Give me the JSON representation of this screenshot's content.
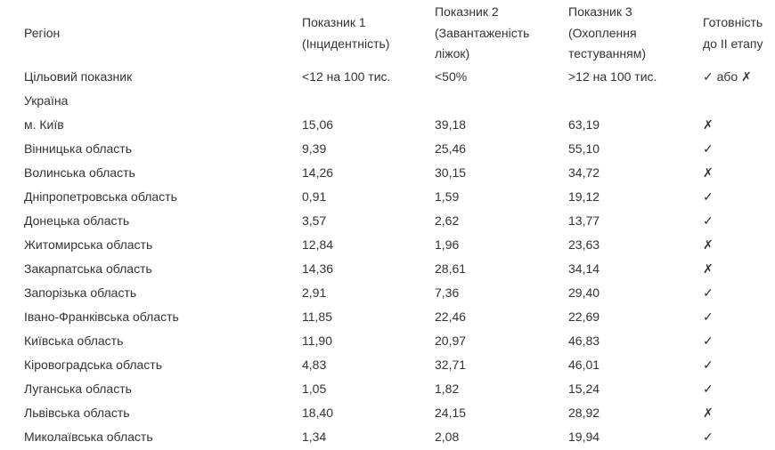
{
  "headers": {
    "region": "Регіон",
    "ind1": [
      "Показник 1",
      "(Інцидентність)"
    ],
    "ind2": [
      "Показник 2",
      "(Завантаженість",
      "ліжок)"
    ],
    "ind3": [
      "Показник 3",
      "(Охоплення",
      "тестуванням)"
    ],
    "ready": [
      "Готовність",
      "до II етапу"
    ]
  },
  "target": {
    "label": "Цільовий показник",
    "ind1": "<12 на 100 тис.",
    "ind2": "<50%",
    "ind3": ">12 на 100 тис.",
    "ready": "✓ або ✗"
  },
  "country": "Україна",
  "rows": [
    {
      "region": "м. Київ",
      "ind1": "15,06",
      "ind2": "39,18",
      "ind3": "63,19",
      "ready": "✗"
    },
    {
      "region": "Вінницька область",
      "ind1": "9,39",
      "ind2": "25,46",
      "ind3": "55,10",
      "ready": "✓"
    },
    {
      "region": "Волинська область",
      "ind1": "14,26",
      "ind2": "30,15",
      "ind3": "34,72",
      "ready": "✗"
    },
    {
      "region": "Дніпропетровська область",
      "ind1": "0,91",
      "ind2": "1,59",
      "ind3": "19,12",
      "ready": "✓"
    },
    {
      "region": "Донецька область",
      "ind1": "3,57",
      "ind2": "2,62",
      "ind3": "13,77",
      "ready": "✓"
    },
    {
      "region": "Житомирська область",
      "ind1": "12,84",
      "ind2": "1,96",
      "ind3": "23,63",
      "ready": "✗"
    },
    {
      "region": "Закарпатська область",
      "ind1": "14,36",
      "ind2": "28,61",
      "ind3": "34,14",
      "ready": "✗"
    },
    {
      "region": "Запорізька область",
      "ind1": "2,91",
      "ind2": "7,36",
      "ind3": "29,40",
      "ready": "✓"
    },
    {
      "region": "Івано-Франківська область",
      "ind1": "11,85",
      "ind2": "22,46",
      "ind3": "22,69",
      "ready": "✓"
    },
    {
      "region": "Київська область",
      "ind1": "11,90",
      "ind2": "20,97",
      "ind3": "46,83",
      "ready": "✓"
    },
    {
      "region": "Кіровоградська область",
      "ind1": "4,83",
      "ind2": "32,71",
      "ind3": "46,01",
      "ready": "✓"
    },
    {
      "region": "Луганська область",
      "ind1": "1,05",
      "ind2": "1,82",
      "ind3": "15,24",
      "ready": "✓"
    },
    {
      "region": "Львівська область",
      "ind1": "18,40",
      "ind2": "24,15",
      "ind3": "28,92",
      "ready": "✗"
    },
    {
      "region": "Миколаївська область",
      "ind1": "1,34",
      "ind2": "2,08",
      "ind3": "19,94",
      "ready": "✓"
    }
  ]
}
